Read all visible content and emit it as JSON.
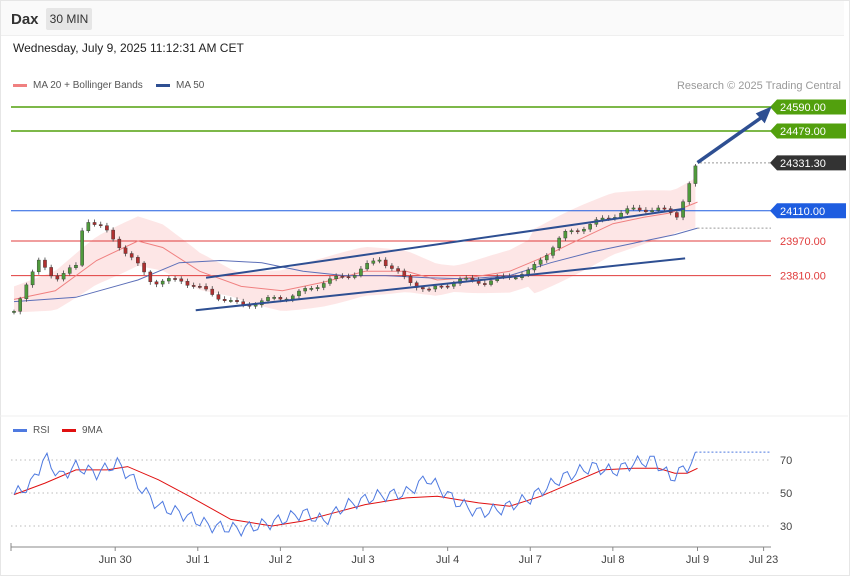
{
  "header": {
    "symbol": "Dax",
    "timeframe": "30 MIN",
    "timestamp": "Wednesday, July 9, 2025 11:12:31 AM CET",
    "credit": "Research © 2025 Trading Central"
  },
  "colors": {
    "bollinger_fill": "#fde2e2",
    "ma20": "#f08080",
    "ma50": "#5c6fb8",
    "trendline": "#2e4f92",
    "target": "#52a00d",
    "pivot": "#1e5de0",
    "support": "#e03c3c",
    "rsi": "#4f7ae0",
    "rsi_ma": "#e01010",
    "candle_up": "#4f9a3c",
    "candle_down": "#b03030"
  },
  "chart_data": [
    {
      "type": "candlestick",
      "title": "",
      "legend": [
        "MA 20 + Bollinger Bands",
        "MA 50"
      ],
      "legend_placement": "top-left",
      "x_tick_labels": [
        "Jun 30",
        "Jul 1",
        "Jul 2",
        "Jul 3",
        "Jul 4",
        "Jul 7",
        "Jul 8",
        "Jul 9",
        "Jul 23"
      ],
      "ylim": [
        23600,
        24700
      ],
      "levels": [
        {
          "value": 24590.0,
          "label": "24590.00",
          "kind": "target"
        },
        {
          "value": 24479.0,
          "label": "24479.00",
          "kind": "target"
        },
        {
          "value": 24331.3,
          "label": "24331.30",
          "kind": "last"
        },
        {
          "value": 24110.0,
          "label": "24110.00",
          "kind": "pivot"
        },
        {
          "value": 23970.0,
          "label": "23970.00",
          "kind": "support"
        },
        {
          "value": 23810.0,
          "label": "23810.00",
          "kind": "support"
        }
      ],
      "close_path": [
        [
          0,
          23645
        ],
        [
          5,
          23760
        ],
        [
          12,
          23870
        ],
        [
          20,
          23800
        ],
        [
          30,
          23850
        ],
        [
          34,
          24080
        ],
        [
          44,
          24020
        ],
        [
          56,
          23900
        ],
        [
          67,
          23780
        ],
        [
          81,
          23790
        ],
        [
          97,
          23720
        ],
        [
          110,
          23670
        ],
        [
          124,
          23700
        ],
        [
          136,
          23720
        ],
        [
          150,
          23780
        ],
        [
          165,
          23820
        ],
        [
          177,
          23890
        ],
        [
          190,
          23790
        ],
        [
          201,
          23740
        ],
        [
          215,
          23790
        ],
        [
          228,
          23780
        ],
        [
          238,
          23800
        ],
        [
          250,
          23830
        ],
        [
          266,
          24000
        ],
        [
          280,
          24050
        ],
        [
          296,
          24110
        ],
        [
          311,
          24120
        ],
        [
          321,
          24090
        ],
        [
          331,
          24330
        ]
      ],
      "ma20_path": [
        [
          0,
          23700
        ],
        [
          20,
          23740
        ],
        [
          40,
          23880
        ],
        [
          60,
          23970
        ],
        [
          72,
          23940
        ],
        [
          90,
          23830
        ],
        [
          110,
          23760
        ],
        [
          130,
          23740
        ],
        [
          150,
          23780
        ],
        [
          170,
          23830
        ],
        [
          190,
          23830
        ],
        [
          205,
          23790
        ],
        [
          220,
          23800
        ],
        [
          240,
          23830
        ],
        [
          255,
          23890
        ],
        [
          270,
          23960
        ],
        [
          290,
          24050
        ],
        [
          305,
          24080
        ],
        [
          318,
          24100
        ],
        [
          331,
          24150
        ]
      ],
      "ma50_path": [
        [
          0,
          23690
        ],
        [
          30,
          23710
        ],
        [
          60,
          23790
        ],
        [
          80,
          23870
        ],
        [
          100,
          23880
        ],
        [
          120,
          23870
        ],
        [
          140,
          23830
        ],
        [
          160,
          23810
        ],
        [
          180,
          23810
        ],
        [
          200,
          23800
        ],
        [
          220,
          23795
        ],
        [
          240,
          23810
        ],
        [
          260,
          23870
        ],
        [
          280,
          23920
        ],
        [
          300,
          23960
        ],
        [
          320,
          24000
        ],
        [
          331,
          24030
        ]
      ],
      "trendlines": [
        [
          [
            93,
            23800
          ],
          [
            325,
            24120
          ]
        ],
        [
          [
            88,
            23650
          ],
          [
            325,
            23890
          ]
        ]
      ],
      "arrow": [
        [
          331,
          24333
        ],
        [
          365,
          24570
        ]
      ]
    },
    {
      "type": "line",
      "title": "",
      "legend": [
        "RSI",
        "9MA"
      ],
      "legend_placement": "top-left",
      "ylim": [
        23,
        80
      ],
      "y_tick_labels": [
        "70",
        "50",
        "30"
      ],
      "series": [
        {
          "name": "RSI",
          "values": [
            [
              0,
              49
            ],
            [
              8,
              55
            ],
            [
              15,
              72
            ],
            [
              22,
              60
            ],
            [
              30,
              66
            ],
            [
              40,
              62
            ],
            [
              50,
              68
            ],
            [
              60,
              55
            ],
            [
              70,
              42
            ],
            [
              80,
              38
            ],
            [
              95,
              30
            ],
            [
              110,
              28
            ],
            [
              125,
              32
            ],
            [
              140,
              38
            ],
            [
              150,
              33
            ],
            [
              160,
              42
            ],
            [
              175,
              48
            ],
            [
              190,
              50
            ],
            [
              200,
              59
            ],
            [
              215,
              44
            ],
            [
              225,
              38
            ],
            [
              235,
              40
            ],
            [
              250,
              47
            ],
            [
              265,
              59
            ],
            [
              280,
              66
            ],
            [
              290,
              63
            ],
            [
              300,
              68
            ],
            [
              310,
              70
            ],
            [
              318,
              59
            ],
            [
              326,
              66
            ],
            [
              331,
              72
            ]
          ]
        },
        {
          "name": "9MA",
          "values": [
            [
              0,
              49
            ],
            [
              15,
              56
            ],
            [
              30,
              64
            ],
            [
              45,
              64
            ],
            [
              55,
              66
            ],
            [
              70,
              58
            ],
            [
              85,
              48
            ],
            [
              105,
              34
            ],
            [
              125,
              30
            ],
            [
              140,
              33
            ],
            [
              155,
              38
            ],
            [
              170,
              43
            ],
            [
              190,
              47
            ],
            [
              205,
              48
            ],
            [
              215,
              46
            ],
            [
              225,
              44
            ],
            [
              240,
              42
            ],
            [
              255,
              48
            ],
            [
              270,
              56
            ],
            [
              285,
              64
            ],
            [
              300,
              65
            ],
            [
              312,
              65
            ],
            [
              320,
              62
            ],
            [
              326,
              62
            ],
            [
              331,
              65
            ]
          ]
        }
      ]
    }
  ]
}
